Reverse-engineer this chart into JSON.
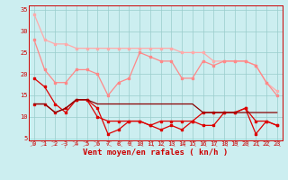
{
  "x": [
    0,
    1,
    2,
    3,
    4,
    5,
    6,
    7,
    8,
    9,
    10,
    11,
    12,
    13,
    14,
    15,
    16,
    17,
    18,
    19,
    20,
    21,
    22,
    23
  ],
  "line1": [
    34,
    28,
    27,
    27,
    26,
    26,
    26,
    26,
    26,
    26,
    26,
    26,
    26,
    26,
    25,
    25,
    25,
    23,
    23,
    23,
    23,
    22,
    18,
    16
  ],
  "line2": [
    28,
    21,
    18,
    18,
    21,
    21,
    20,
    15,
    18,
    19,
    25,
    24,
    23,
    23,
    19,
    19,
    23,
    22,
    23,
    23,
    23,
    22,
    18,
    15
  ],
  "line3": [
    19,
    17,
    13,
    11,
    14,
    14,
    10,
    9,
    9,
    9,
    9,
    8,
    9,
    9,
    9,
    9,
    11,
    11,
    11,
    11,
    12,
    9,
    9,
    8
  ],
  "line4": [
    13,
    13,
    11,
    12,
    14,
    14,
    12,
    6,
    7,
    9,
    9,
    8,
    7,
    8,
    7,
    9,
    8,
    8,
    11,
    11,
    12,
    6,
    9,
    8
  ],
  "line5": [
    13,
    13,
    11,
    12,
    14,
    14,
    13,
    13,
    13,
    13,
    13,
    13,
    13,
    13,
    13,
    13,
    11,
    11,
    11,
    11,
    11,
    11,
    11,
    11
  ],
  "xlabel": "Vent moyen/en rafales ( kn/h )",
  "xlim": [
    -0.5,
    23.5
  ],
  "ylim": [
    4.5,
    36
  ],
  "yticks": [
    5,
    10,
    15,
    20,
    25,
    30,
    35
  ],
  "xticks": [
    0,
    1,
    2,
    3,
    4,
    5,
    6,
    7,
    8,
    9,
    10,
    11,
    12,
    13,
    14,
    15,
    16,
    17,
    18,
    19,
    20,
    21,
    22,
    23
  ],
  "bg_color": "#cceef0",
  "grid_color": "#99cccc",
  "line1_color": "#ffaaaa",
  "line2_color": "#ff8888",
  "line3_color": "#dd0000",
  "line4_color": "#dd0000",
  "line5_color": "#880000",
  "arrow_angles": [
    90,
    90,
    90,
    45,
    90,
    90,
    90,
    270,
    270,
    270,
    270,
    270,
    270,
    270,
    270,
    270,
    270,
    270,
    270,
    270,
    270,
    270,
    270,
    270
  ],
  "marker": "s",
  "markersize": 2.0,
  "lw": 0.9,
  "tick_fontsize": 5.0,
  "xlabel_fontsize": 6.5
}
